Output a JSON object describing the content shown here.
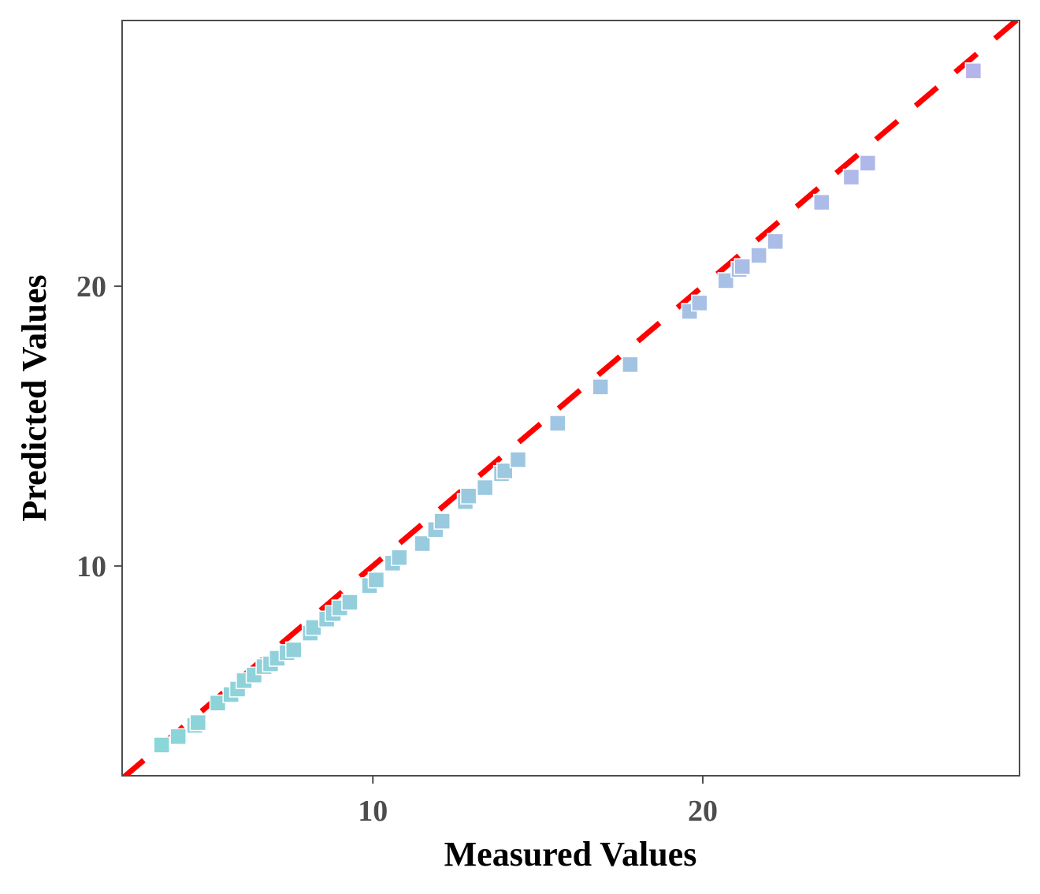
{
  "chart_data": {
    "type": "scatter",
    "title": "",
    "xlabel": "Measured Values",
    "ylabel": "Predicted Values",
    "xlim": [
      2.4,
      29.6
    ],
    "ylim": [
      2.5,
      29.5
    ],
    "x_ticks": [
      {
        "value": 10,
        "label": "10"
      },
      {
        "value": 20,
        "label": "20"
      }
    ],
    "y_ticks": [
      {
        "value": 10,
        "label": "10"
      },
      {
        "value": 20,
        "label": "20"
      }
    ],
    "grid": false,
    "legend": "none",
    "reference_line": {
      "slope": 1,
      "intercept": 0,
      "style": "dashed",
      "color": "#ff0000"
    },
    "marker": "square",
    "color_gradient": {
      "low": "#8ad6d8",
      "high": "#b6b4ec",
      "min": 3.5,
      "max": 28.8
    },
    "points": [
      {
        "x": 3.6,
        "y": 3.6
      },
      {
        "x": 4.1,
        "y": 3.9
      },
      {
        "x": 4.6,
        "y": 4.3
      },
      {
        "x": 4.7,
        "y": 4.4
      },
      {
        "x": 5.3,
        "y": 5.1
      },
      {
        "x": 5.7,
        "y": 5.4
      },
      {
        "x": 5.9,
        "y": 5.6
      },
      {
        "x": 6.1,
        "y": 5.9
      },
      {
        "x": 6.4,
        "y": 6.1
      },
      {
        "x": 6.7,
        "y": 6.4
      },
      {
        "x": 6.9,
        "y": 6.5
      },
      {
        "x": 7.1,
        "y": 6.7
      },
      {
        "x": 7.4,
        "y": 6.9
      },
      {
        "x": 7.6,
        "y": 7.0
      },
      {
        "x": 8.1,
        "y": 7.6
      },
      {
        "x": 8.2,
        "y": 7.8
      },
      {
        "x": 8.6,
        "y": 8.1
      },
      {
        "x": 8.8,
        "y": 8.3
      },
      {
        "x": 9.0,
        "y": 8.5
      },
      {
        "x": 9.3,
        "y": 8.7
      },
      {
        "x": 9.9,
        "y": 9.3
      },
      {
        "x": 10.1,
        "y": 9.5
      },
      {
        "x": 10.6,
        "y": 10.1
      },
      {
        "x": 10.8,
        "y": 10.3
      },
      {
        "x": 11.5,
        "y": 10.8
      },
      {
        "x": 11.9,
        "y": 11.3
      },
      {
        "x": 12.1,
        "y": 11.6
      },
      {
        "x": 12.8,
        "y": 12.3
      },
      {
        "x": 12.9,
        "y": 12.5
      },
      {
        "x": 13.4,
        "y": 12.8
      },
      {
        "x": 13.9,
        "y": 13.3
      },
      {
        "x": 14.0,
        "y": 13.4
      },
      {
        "x": 14.4,
        "y": 13.8
      },
      {
        "x": 15.6,
        "y": 15.1
      },
      {
        "x": 16.9,
        "y": 16.4
      },
      {
        "x": 17.8,
        "y": 17.2
      },
      {
        "x": 19.6,
        "y": 19.1
      },
      {
        "x": 19.9,
        "y": 19.4
      },
      {
        "x": 20.7,
        "y": 20.2
      },
      {
        "x": 21.1,
        "y": 20.6
      },
      {
        "x": 21.2,
        "y": 20.7
      },
      {
        "x": 21.7,
        "y": 21.1
      },
      {
        "x": 22.2,
        "y": 21.6
      },
      {
        "x": 23.6,
        "y": 23.0
      },
      {
        "x": 24.5,
        "y": 23.9
      },
      {
        "x": 25.0,
        "y": 24.4
      },
      {
        "x": 28.2,
        "y": 27.7
      }
    ]
  }
}
